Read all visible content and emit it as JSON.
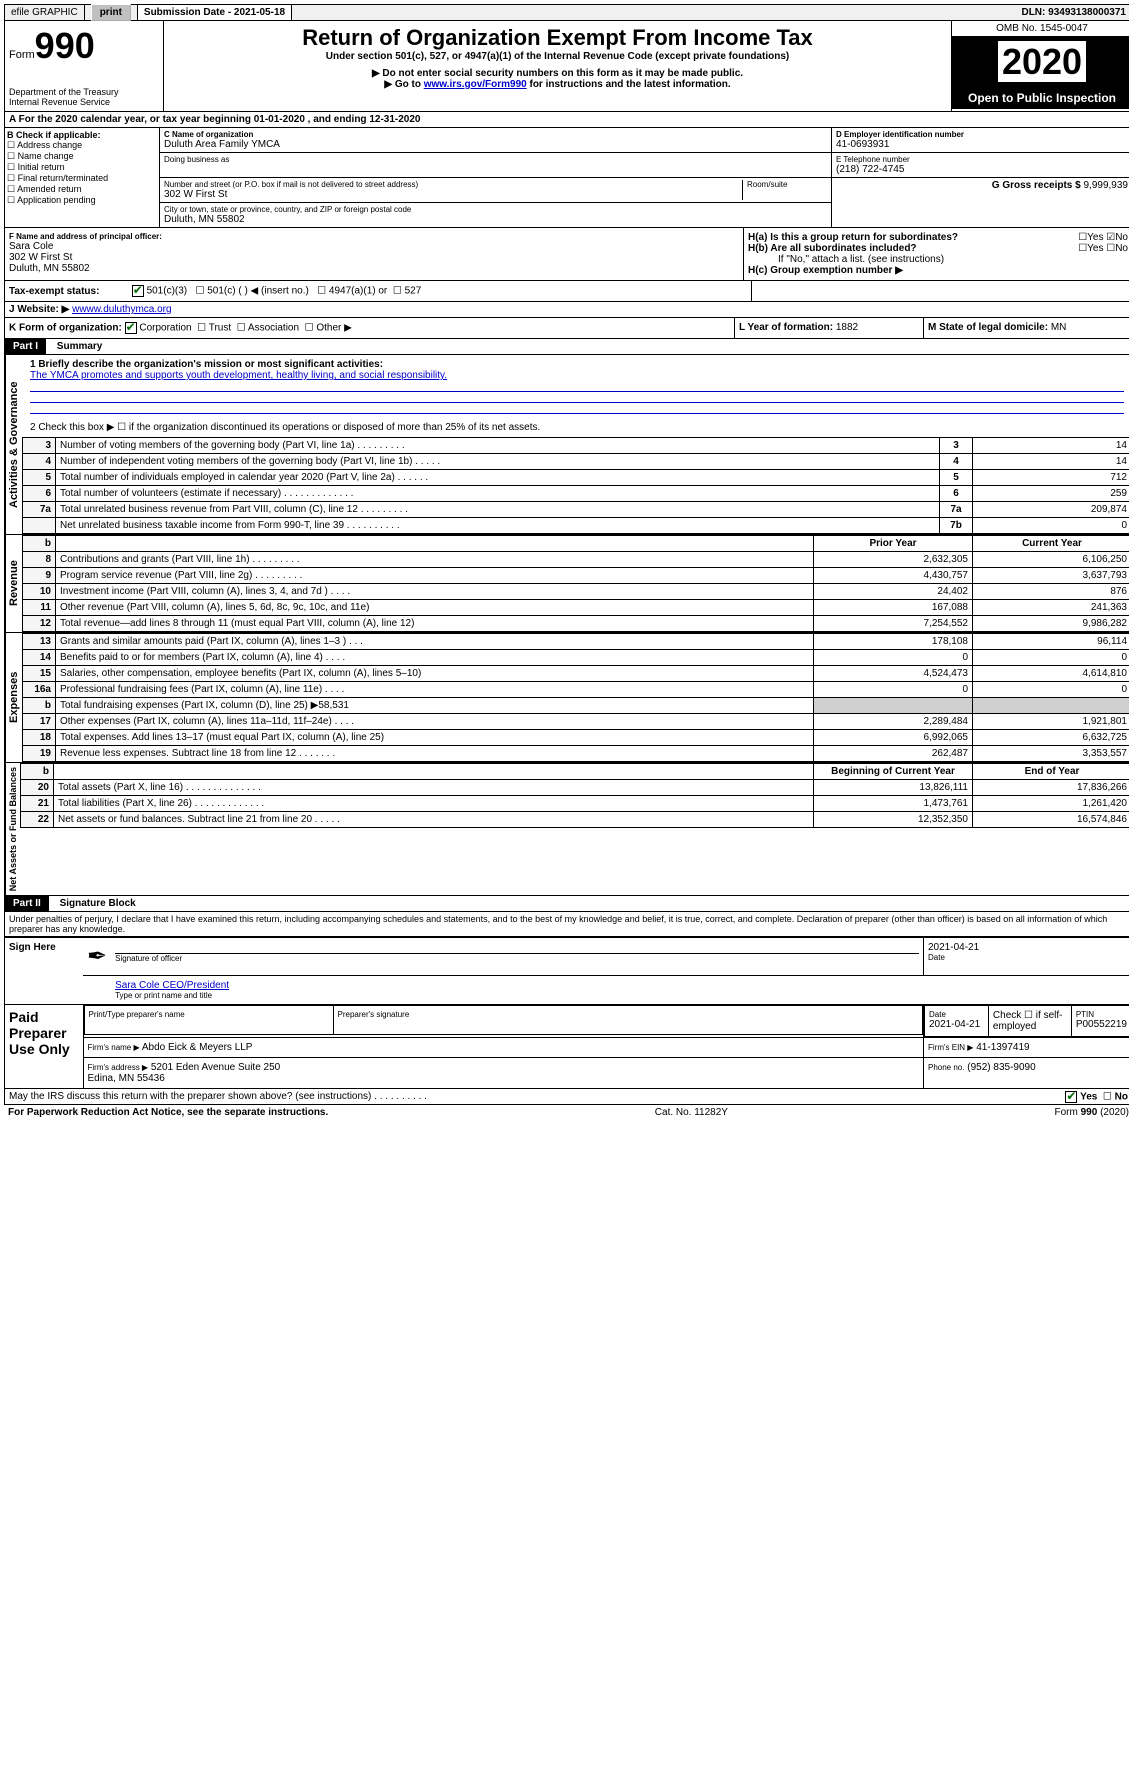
{
  "topbar": {
    "efile": "efile GRAPHIC",
    "print": "print",
    "submission_label": "Submission Date - 2021-05-18",
    "dln": "DLN: 93493138000371"
  },
  "header": {
    "form_label": "Form",
    "form_number": "990",
    "dept": "Department of the Treasury\nInternal Revenue Service",
    "title": "Return of Organization Exempt From Income Tax",
    "subtitle": "Under section 501(c), 527, or 4947(a)(1) of the Internal Revenue Code (except private foundations)",
    "note1": "▶ Do not enter social security numbers on this form as it may be made public.",
    "note2_pre": "▶ Go to ",
    "note2_link": "www.irs.gov/Form990",
    "note2_post": " for instructions and the latest information.",
    "omb": "OMB No. 1545-0047",
    "year": "2020",
    "open": "Open to Public Inspection"
  },
  "period": "A For the 2020 calendar year, or tax year beginning 01-01-2020   , and ending 12-31-2020",
  "box_b": {
    "label": "B Check if applicable:",
    "opts": [
      "Address change",
      "Name change",
      "Initial return",
      "Final return/terminated",
      "Amended return",
      "Application pending"
    ]
  },
  "box_c": {
    "name_label": "C Name of organization",
    "name": "Duluth Area Family YMCA",
    "dba_label": "Doing business as",
    "addr_label": "Number and street (or P.O. box if mail is not delivered to street address)",
    "room_label": "Room/suite",
    "addr": "302 W First St",
    "city_label": "City or town, state or province, country, and ZIP or foreign postal code",
    "city": "Duluth, MN  55802"
  },
  "box_d": {
    "label": "D Employer identification number",
    "value": "41-0693931"
  },
  "box_e": {
    "label": "E Telephone number",
    "value": "(218) 722-4745"
  },
  "box_g": {
    "label": "G Gross receipts $",
    "value": "9,999,939"
  },
  "box_f": {
    "label": "F  Name and address of principal officer:",
    "name": "Sara Cole",
    "addr1": "302 W First St",
    "addr2": "Duluth, MN  55802"
  },
  "box_h": {
    "a": "H(a)  Is this a group return for subordinates?",
    "b": "H(b)  Are all subordinates included?",
    "note": "If \"No,\" attach a list. (see instructions)",
    "c": "H(c)  Group exemption number ▶"
  },
  "box_i": {
    "label": "Tax-exempt status:",
    "o1": "501(c)(3)",
    "o2": "501(c) (  ) ◀ (insert no.)",
    "o3": "4947(a)(1) or",
    "o4": "527"
  },
  "box_j": {
    "label": "J Website: ▶",
    "value": "wwww.duluthymca.org"
  },
  "box_k": {
    "label": "K Form of organization:",
    "o1": "Corporation",
    "o2": "Trust",
    "o3": "Association",
    "o4": "Other ▶"
  },
  "box_l": {
    "label": "L Year of formation:",
    "value": "1882"
  },
  "box_m": {
    "label": "M State of legal domicile:",
    "value": "MN"
  },
  "part1": {
    "hdr": "Part I",
    "title": "Summary",
    "l1_label": "1  Briefly describe the organization's mission or most significant activities:",
    "l1_text": "The YMCA promotes and supports youth development, healthy living, and social responsibility.",
    "l2": "2   Check this box ▶ ☐  if the organization discontinued its operations or disposed of more than 25% of its net assets.",
    "rows_a": [
      {
        "n": "3",
        "t": "Number of voting members of the governing body (Part VI, line 1a)   .    .    .    .    .    .    .    .    .",
        "box": "3",
        "v": "14"
      },
      {
        "n": "4",
        "t": "Number of independent voting members of the governing body (Part VI, line 1b)   .    .    .    .    .",
        "box": "4",
        "v": "14"
      },
      {
        "n": "5",
        "t": "Total number of individuals employed in calendar year 2020 (Part V, line 2a)   .    .    .    .    .    .",
        "box": "5",
        "v": "712"
      },
      {
        "n": "6",
        "t": "Total number of volunteers (estimate if necessary)   .    .    .    .    .    .    .    .    .    .    .    .    .",
        "box": "6",
        "v": "259"
      },
      {
        "n": "7a",
        "t": "Total unrelated business revenue from Part VIII, column (C), line 12   .    .    .    .    .    .    .    .    .",
        "box": "7a",
        "v": "209,874"
      },
      {
        "n": "",
        "t": "Net unrelated business taxable income from Form 990-T, line 39   .    .    .    .    .    .    .    .    .    .",
        "box": "7b",
        "v": "0"
      }
    ],
    "col_prior": "Prior Year",
    "col_current": "Current Year",
    "rev": [
      {
        "n": "8",
        "t": "Contributions and grants (Part VIII, line 1h)   .    .    .    .    .    .    .    .    .",
        "p": "2,632,305",
        "c": "6,106,250"
      },
      {
        "n": "9",
        "t": "Program service revenue (Part VIII, line 2g)   .    .    .    .    .    .    .    .    .",
        "p": "4,430,757",
        "c": "3,637,793"
      },
      {
        "n": "10",
        "t": "Investment income (Part VIII, column (A), lines 3, 4, and 7d )   .    .    .    .",
        "p": "24,402",
        "c": "876"
      },
      {
        "n": "11",
        "t": "Other revenue (Part VIII, column (A), lines 5, 6d, 8c, 9c, 10c, and 11e)",
        "p": "167,088",
        "c": "241,363"
      },
      {
        "n": "12",
        "t": "Total revenue—add lines 8 through 11 (must equal Part VIII, column (A), line 12)",
        "p": "7,254,552",
        "c": "9,986,282"
      }
    ],
    "exp": [
      {
        "n": "13",
        "t": "Grants and similar amounts paid (Part IX, column (A), lines 1–3 )   .    .    .",
        "p": "178,108",
        "c": "96,114"
      },
      {
        "n": "14",
        "t": "Benefits paid to or for members (Part IX, column (A), line 4)   .    .    .    .",
        "p": "0",
        "c": "0"
      },
      {
        "n": "15",
        "t": "Salaries, other compensation, employee benefits (Part IX, column (A), lines 5–10)",
        "p": "4,524,473",
        "c": "4,614,810"
      },
      {
        "n": "16a",
        "t": "Professional fundraising fees (Part IX, column (A), line 11e)   .    .    .    .",
        "p": "0",
        "c": "0"
      },
      {
        "n": "b",
        "t": "Total fundraising expenses (Part IX, column (D), line 25) ▶58,531",
        "p": "",
        "c": "",
        "shade": true
      },
      {
        "n": "17",
        "t": "Other expenses (Part IX, column (A), lines 11a–11d, 11f–24e)   .    .    .    .",
        "p": "2,289,484",
        "c": "1,921,801"
      },
      {
        "n": "18",
        "t": "Total expenses. Add lines 13–17 (must equal Part IX, column (A), line 25)",
        "p": "6,992,065",
        "c": "6,632,725"
      },
      {
        "n": "19",
        "t": "Revenue less expenses. Subtract line 18 from line 12   .    .    .    .    .    .    .",
        "p": "262,487",
        "c": "3,353,557"
      }
    ],
    "col_begin": "Beginning of Current Year",
    "col_end": "End of Year",
    "net": [
      {
        "n": "20",
        "t": "Total assets (Part X, line 16)   .    .    .    .    .    .    .    .    .    .    .    .    .    .",
        "p": "13,826,111",
        "c": "17,836,266"
      },
      {
        "n": "21",
        "t": "Total liabilities (Part X, line 26)   .    .    .    .    .    .    .    .    .    .    .    .    .",
        "p": "1,473,761",
        "c": "1,261,420"
      },
      {
        "n": "22",
        "t": "Net assets or fund balances. Subtract line 21 from line 20   .    .    .    .    .",
        "p": "12,352,350",
        "c": "16,574,846"
      }
    ],
    "tab_gov": "Activities & Governance",
    "tab_rev": "Revenue",
    "tab_exp": "Expenses",
    "tab_net": "Net Assets or Fund Balances"
  },
  "part2": {
    "hdr": "Part II",
    "title": "Signature Block",
    "decl": "Under penalties of perjury, I declare that I have examined this return, including accompanying schedules and statements, and to the best of my knowledge and belief, it is true, correct, and complete. Declaration of preparer (other than officer) is based on all information of which preparer has any knowledge.",
    "sign_here": "Sign Here",
    "sig_officer": "Signature of officer",
    "sig_date": "2021-04-21",
    "date_lbl": "Date",
    "officer_name": "Sara Cole CEO/President",
    "type_name": "Type or print name and title",
    "paid": "Paid Preparer Use Only",
    "prep_name_lbl": "Print/Type preparer's name",
    "prep_sig_lbl": "Preparer's signature",
    "prep_date_lbl": "Date",
    "prep_date": "2021-04-21",
    "check_self": "Check ☐ if self-employed",
    "ptin_lbl": "PTIN",
    "ptin": "P00552219",
    "firm_name_lbl": "Firm's name      ▶",
    "firm_name": "Abdo Eick & Meyers LLP",
    "firm_ein_lbl": "Firm's EIN ▶",
    "firm_ein": "41-1397419",
    "firm_addr_lbl": "Firm's address ▶",
    "firm_addr": "5201 Eden Avenue Suite 250\nEdina, MN  55436",
    "phone_lbl": "Phone no.",
    "phone": "(952) 835-9090",
    "discuss": "May the IRS discuss this return with the preparer shown above? (see instructions)    .    .    .    .    .    .    .    .    .    .",
    "yes": "Yes",
    "no": "No"
  },
  "footer": {
    "pra": "For Paperwork Reduction Act Notice, see the separate instructions.",
    "cat": "Cat. No. 11282Y",
    "form": "Form 990 (2020)"
  }
}
